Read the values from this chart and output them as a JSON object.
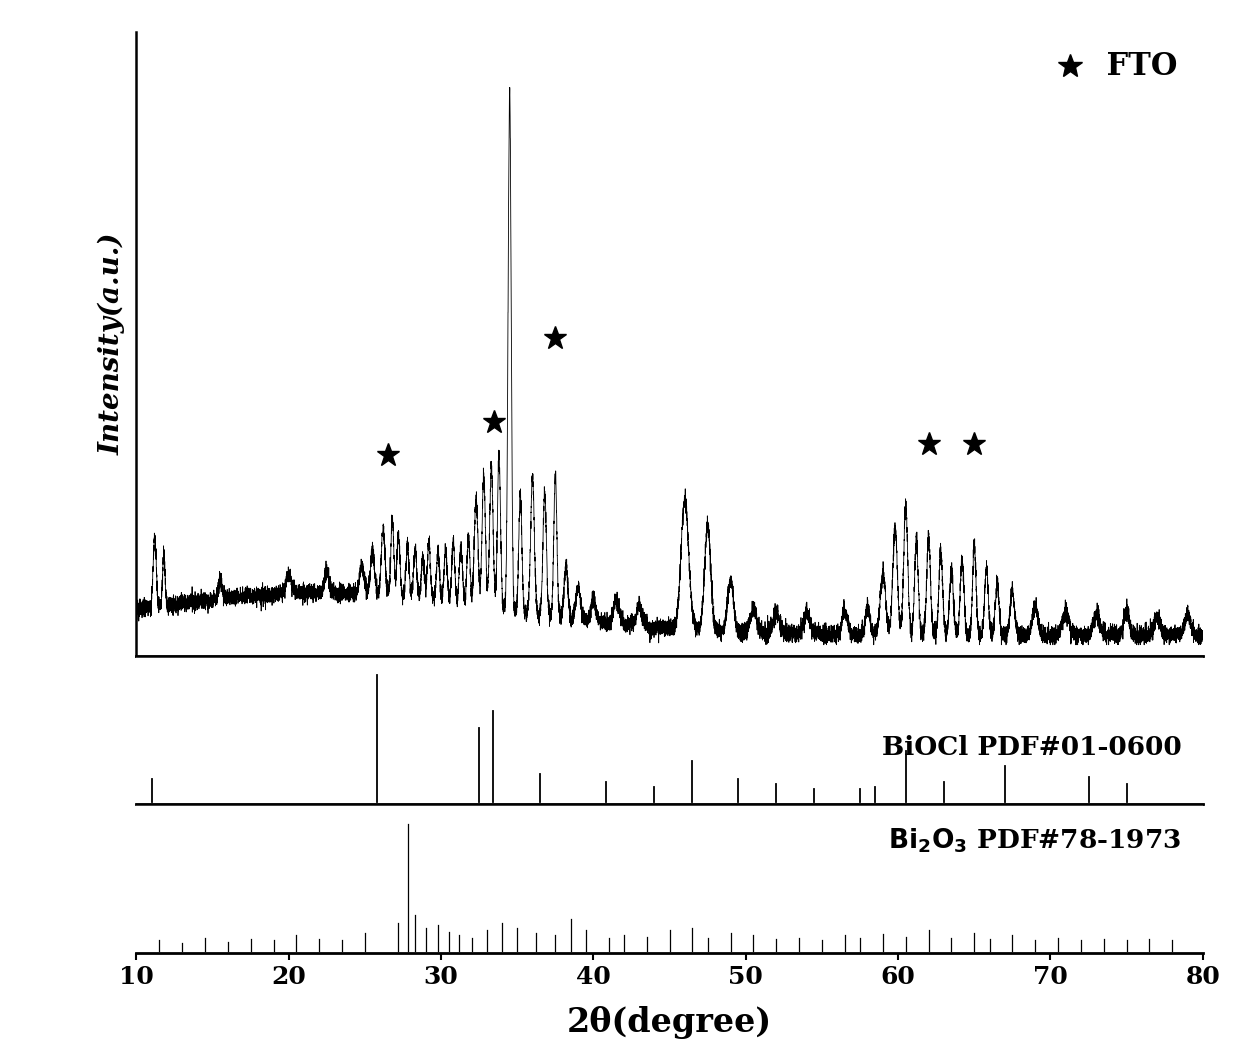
{
  "xlim": [
    10,
    80
  ],
  "xlabel": "2θ(degree)",
  "ylabel": "Intensity(a.u.)",
  "fto_label": " FTO",
  "biocl_label": "BiOCl PDF#01-0600",
  "bi2o3_label": "Bi$_2$O$_3$ PDF#78-1973",
  "background_color": "#ffffff",
  "line_color": "#000000",
  "biocl_peaks": [
    11.0,
    25.8,
    32.5,
    33.4,
    36.5,
    40.8,
    44.0,
    46.5,
    49.5,
    52.0,
    54.5,
    57.5,
    58.5,
    60.5,
    63.0,
    67.0,
    72.5,
    75.0
  ],
  "biocl_heights": [
    0.18,
    1.0,
    0.58,
    0.72,
    0.22,
    0.16,
    0.12,
    0.32,
    0.18,
    0.14,
    0.1,
    0.1,
    0.12,
    0.4,
    0.16,
    0.28,
    0.2,
    0.14
  ],
  "bi2o3_peaks": [
    11.5,
    13.0,
    14.5,
    16.0,
    17.5,
    19.0,
    20.5,
    22.0,
    23.5,
    25.0,
    27.2,
    27.8,
    28.3,
    29.0,
    29.8,
    30.5,
    31.2,
    32.0,
    33.0,
    34.0,
    35.0,
    36.2,
    37.5,
    38.5,
    39.5,
    41.0,
    42.0,
    43.5,
    45.0,
    46.5,
    47.5,
    49.0,
    50.5,
    52.0,
    53.5,
    55.0,
    56.5,
    57.5,
    59.0,
    60.5,
    62.0,
    63.5,
    65.0,
    66.0,
    67.5,
    69.0,
    70.5,
    72.0,
    73.5,
    75.0,
    76.5,
    78.0
  ],
  "bi2o3_heights": [
    0.08,
    0.06,
    0.1,
    0.07,
    0.09,
    0.08,
    0.12,
    0.09,
    0.08,
    0.14,
    0.22,
    1.0,
    0.28,
    0.18,
    0.2,
    0.15,
    0.12,
    0.1,
    0.16,
    0.22,
    0.18,
    0.14,
    0.12,
    0.25,
    0.16,
    0.1,
    0.12,
    0.11,
    0.16,
    0.18,
    0.1,
    0.14,
    0.12,
    0.09,
    0.1,
    0.08,
    0.12,
    0.1,
    0.13,
    0.11,
    0.16,
    0.1,
    0.14,
    0.09,
    0.12,
    0.08,
    0.1,
    0.08,
    0.09,
    0.08,
    0.09,
    0.08
  ],
  "title_fontsize": 24,
  "label_fontsize": 20,
  "tick_fontsize": 18,
  "annotation_fontsize": 19
}
